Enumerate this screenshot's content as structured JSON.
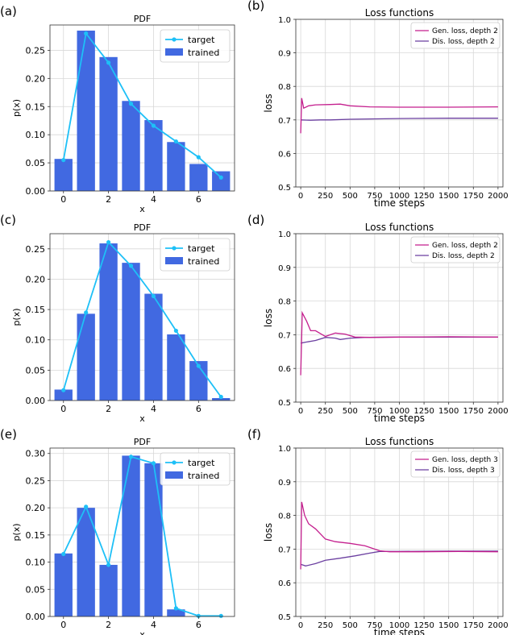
{
  "panels": [
    {
      "label": "(a)",
      "title": "PDF",
      "type": "pdf",
      "xlabel": "x",
      "ylabel": "p(x)",
      "xlim": [
        -0.6,
        7.6
      ],
      "ylim": [
        0,
        0.295
      ],
      "xticks": [
        0,
        2,
        4,
        6
      ],
      "yticks": [
        0,
        0.05,
        0.1,
        0.15,
        0.2,
        0.25
      ],
      "yticklabels": [
        "0.00",
        "0.05",
        "0.10",
        "0.15",
        "0.20",
        "0.25"
      ],
      "legend": [
        "target",
        "trained"
      ],
      "trained": [
        0.057,
        0.285,
        0.238,
        0.16,
        0.126,
        0.087,
        0.048,
        0.035
      ],
      "target": [
        0.055,
        0.28,
        0.228,
        0.155,
        0.116,
        0.088,
        0.06,
        0.024
      ]
    },
    {
      "label": "(b)",
      "title": "Loss functions",
      "type": "loss",
      "xlabel": "time steps",
      "ylabel": "loss",
      "xlim": [
        -50,
        2050
      ],
      "ylim": [
        0.5,
        1.0
      ],
      "xticks": [
        0,
        250,
        500,
        750,
        1000,
        1250,
        1500,
        1750,
        2000
      ],
      "yticks": [
        0.5,
        0.6,
        0.7,
        0.8,
        0.9,
        1.0
      ],
      "yticklabels": [
        "0.5",
        "0.6",
        "0.7",
        "0.8",
        "0.9",
        "1.0"
      ],
      "legend": [
        "Gen. loss, depth 2",
        "Dis. loss, depth 2"
      ],
      "gen": [
        [
          0,
          0.66
        ],
        [
          10,
          0.765
        ],
        [
          30,
          0.735
        ],
        [
          80,
          0.742
        ],
        [
          150,
          0.745
        ],
        [
          300,
          0.746
        ],
        [
          400,
          0.747
        ],
        [
          500,
          0.742
        ],
        [
          700,
          0.739
        ],
        [
          1000,
          0.738
        ],
        [
          1500,
          0.738
        ],
        [
          2000,
          0.739
        ]
      ],
      "dis": [
        [
          0,
          0.7
        ],
        [
          100,
          0.699
        ],
        [
          200,
          0.7
        ],
        [
          300,
          0.7
        ],
        [
          500,
          0.702
        ],
        [
          700,
          0.703
        ],
        [
          1000,
          0.704
        ],
        [
          1500,
          0.705
        ],
        [
          2000,
          0.705
        ]
      ]
    },
    {
      "label": "(c)",
      "title": "PDF",
      "type": "pdf",
      "xlabel": "x",
      "ylabel": "p(x)",
      "xlim": [
        -0.6,
        7.6
      ],
      "ylim": [
        0,
        0.275
      ],
      "xticks": [
        0,
        2,
        4,
        6
      ],
      "yticks": [
        0,
        0.05,
        0.1,
        0.15,
        0.2,
        0.25
      ],
      "yticklabels": [
        "0.00",
        "0.05",
        "0.10",
        "0.15",
        "0.20",
        "0.25"
      ],
      "legend": [
        "target",
        "trained"
      ],
      "trained": [
        0.018,
        0.143,
        0.259,
        0.227,
        0.176,
        0.109,
        0.065,
        0.004
      ],
      "target": [
        0.017,
        0.145,
        0.261,
        0.222,
        0.172,
        0.115,
        0.057,
        0.006
      ]
    },
    {
      "label": "(d)",
      "title": "Loss functions",
      "type": "loss",
      "xlabel": "time steps",
      "ylabel": "loss",
      "xlim": [
        -50,
        2050
      ],
      "ylim": [
        0.5,
        1.0
      ],
      "xticks": [
        0,
        250,
        500,
        750,
        1000,
        1250,
        1500,
        1750,
        2000
      ],
      "yticks": [
        0.5,
        0.6,
        0.7,
        0.8,
        0.9,
        1.0
      ],
      "yticklabels": [
        "0.5",
        "0.6",
        "0.7",
        "0.8",
        "0.9",
        "1.0"
      ],
      "legend": [
        "Gen. loss, depth 2",
        "Dis. loss, depth 2"
      ],
      "gen": [
        [
          0,
          0.58
        ],
        [
          15,
          0.765
        ],
        [
          60,
          0.74
        ],
        [
          100,
          0.712
        ],
        [
          150,
          0.712
        ],
        [
          250,
          0.695
        ],
        [
          350,
          0.705
        ],
        [
          450,
          0.702
        ],
        [
          550,
          0.693
        ],
        [
          700,
          0.692
        ],
        [
          1000,
          0.693
        ],
        [
          1500,
          0.694
        ],
        [
          2000,
          0.693
        ]
      ],
      "dis": [
        [
          0,
          0.675
        ],
        [
          50,
          0.678
        ],
        [
          150,
          0.683
        ],
        [
          250,
          0.692
        ],
        [
          350,
          0.69
        ],
        [
          400,
          0.686
        ],
        [
          500,
          0.69
        ],
        [
          650,
          0.692
        ],
        [
          1000,
          0.693
        ],
        [
          1500,
          0.693
        ],
        [
          2000,
          0.693
        ]
      ]
    },
    {
      "label": "(e)",
      "title": "PDF",
      "type": "pdf",
      "xlabel": "x",
      "ylabel": "p(x)",
      "xlim": [
        -0.6,
        7.6
      ],
      "ylim": [
        0,
        0.31
      ],
      "xticks": [
        0,
        2,
        4,
        6
      ],
      "yticks": [
        0,
        0.05,
        0.1,
        0.15,
        0.2,
        0.25,
        0.3
      ],
      "yticklabels": [
        "0.00",
        "0.05",
        "0.10",
        "0.15",
        "0.20",
        "0.25",
        "0.30"
      ],
      "legend": [
        "target",
        "trained"
      ],
      "trained": [
        0.116,
        0.2,
        0.095,
        0.296,
        0.282,
        0.013,
        0,
        0
      ],
      "target": [
        0.115,
        0.202,
        0.095,
        0.294,
        0.282,
        0.015,
        0.001,
        0.001
      ]
    },
    {
      "label": "(f)",
      "title": "Loss functions",
      "type": "loss",
      "xlabel": "time steps",
      "ylabel": "loss",
      "xlim": [
        -50,
        2050
      ],
      "ylim": [
        0.5,
        1.0
      ],
      "xticks": [
        0,
        250,
        500,
        750,
        1000,
        1250,
        1500,
        1750,
        2000
      ],
      "yticks": [
        0.5,
        0.6,
        0.7,
        0.8,
        0.9,
        1.0
      ],
      "yticklabels": [
        "0.5",
        "0.6",
        "0.7",
        "0.8",
        "0.9",
        "1.0"
      ],
      "legend": [
        "Gen. loss, depth 3",
        "Dis. loss, depth 3"
      ],
      "gen": [
        [
          0,
          0.64
        ],
        [
          10,
          0.84
        ],
        [
          40,
          0.8
        ],
        [
          80,
          0.775
        ],
        [
          150,
          0.76
        ],
        [
          250,
          0.73
        ],
        [
          350,
          0.722
        ],
        [
          500,
          0.717
        ],
        [
          650,
          0.71
        ],
        [
          800,
          0.695
        ],
        [
          900,
          0.692
        ],
        [
          1200,
          0.692
        ],
        [
          1600,
          0.693
        ],
        [
          2000,
          0.692
        ]
      ],
      "dis": [
        [
          0,
          0.655
        ],
        [
          50,
          0.65
        ],
        [
          150,
          0.657
        ],
        [
          250,
          0.667
        ],
        [
          400,
          0.673
        ],
        [
          550,
          0.68
        ],
        [
          700,
          0.688
        ],
        [
          800,
          0.693
        ],
        [
          1000,
          0.693
        ],
        [
          1500,
          0.694
        ],
        [
          2000,
          0.694
        ]
      ]
    }
  ],
  "colors": {
    "bar": "#4169e1",
    "target": "#1ec0f7",
    "gen": "#c41f8e",
    "dis": "#6b3fa0"
  }
}
